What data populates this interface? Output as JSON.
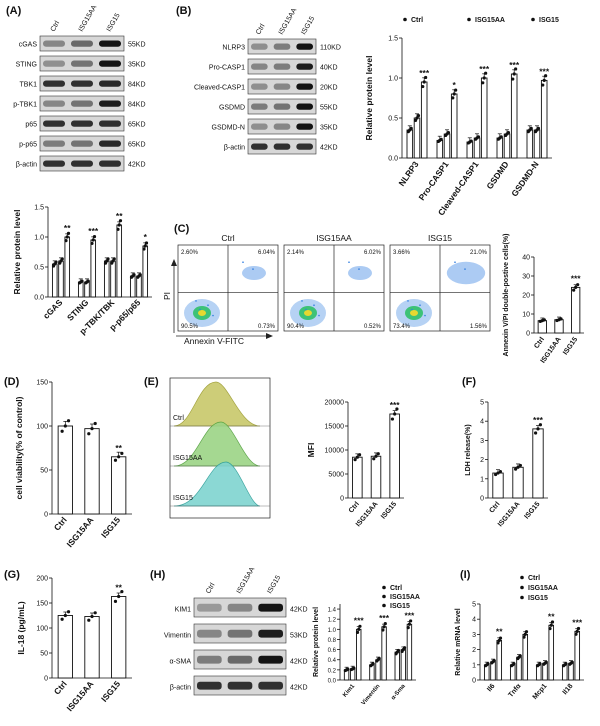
{
  "figure": {
    "panels": [
      {
        "id": "A",
        "label": "(A)",
        "blot": {
          "lanes": [
            "Ctrl",
            "ISG15AA",
            "ISG15"
          ],
          "rows": [
            {
              "name": "cGAS",
              "kd": "55KD",
              "levels": [
                0.35,
                0.5,
                0.95
              ]
            },
            {
              "name": "STING",
              "kd": "35KD",
              "levels": [
                0.3,
                0.45,
                0.95
              ]
            },
            {
              "name": "TBK1",
              "kd": "84KD",
              "levels": [
                0.8,
                0.8,
                0.85
              ]
            },
            {
              "name": "p-TBK1",
              "kd": "84KD",
              "levels": [
                0.35,
                0.45,
                0.9
              ]
            },
            {
              "name": "p65",
              "kd": "65KD",
              "levels": [
                0.8,
                0.8,
                0.8
              ]
            },
            {
              "name": "p-p65",
              "kd": "65KD",
              "levels": [
                0.4,
                0.45,
                0.85
              ]
            },
            {
              "name": "β-actin",
              "kd": "42KD",
              "levels": [
                0.8,
                0.8,
                0.8
              ]
            }
          ]
        },
        "chart_data": {
          "type": "bar",
          "ylabel": "Relative protein level",
          "ylim": [
            0,
            1.5
          ],
          "yticks": [
            "0.0",
            "0.5",
            "1.0",
            "1.5"
          ],
          "categories": [
            "cGAS",
            "STING",
            "p-TBK/TBK",
            "p-p65/p65"
          ],
          "series": [
            {
              "values": [
                0.55,
                0.25,
                0.6,
                0.35
              ]
            },
            {
              "values": [
                0.6,
                0.25,
                0.6,
                0.35
              ]
            },
            {
              "values": [
                1.0,
                0.95,
                1.2,
                0.85
              ]
            }
          ],
          "significance": [
            "**",
            "***",
            "**",
            "*"
          ]
        }
      },
      {
        "id": "B",
        "label": "(B)",
        "blot": {
          "lanes": [
            "Ctrl",
            "ISG15AA",
            "ISG15"
          ],
          "rows": [
            {
              "name": "NLRP3",
              "kd": "110KD",
              "levels": [
                0.3,
                0.4,
                0.95
              ]
            },
            {
              "name": "Pro-CASP1",
              "kd": "40KD",
              "levels": [
                0.35,
                0.4,
                0.9
              ]
            },
            {
              "name": "Cleaved-CASP1",
              "kd": "20KD",
              "levels": [
                0.3,
                0.35,
                0.95
              ]
            },
            {
              "name": "GSDMD",
              "kd": "55KD",
              "levels": [
                0.4,
                0.45,
                0.95
              ]
            },
            {
              "name": "GSDMD-N",
              "kd": "35KD",
              "levels": [
                0.3,
                0.35,
                0.95
              ]
            },
            {
              "name": "β-actin",
              "kd": "42KD",
              "levels": [
                0.8,
                0.8,
                0.8
              ]
            }
          ]
        },
        "chart_data": {
          "type": "bar",
          "ylabel": "Relative protein level",
          "ylim": [
            0,
            1.5
          ],
          "yticks": [
            "0.0",
            "0.5",
            "1.0",
            "1.5"
          ],
          "legend": [
            "Ctrl",
            "ISG15AA",
            "ISG15"
          ],
          "categories": [
            "NLRP3",
            "Pro-CASP1",
            "Cleaved-CASP1",
            "GSDMD",
            "GSDMD-N"
          ],
          "series": [
            {
              "name": "Ctrl",
              "values": [
                0.35,
                0.22,
                0.2,
                0.25,
                0.35
              ]
            },
            {
              "name": "ISG15AA",
              "values": [
                0.5,
                0.3,
                0.25,
                0.3,
                0.35
              ]
            },
            {
              "name": "ISG15",
              "values": [
                0.95,
                0.8,
                1.0,
                1.05,
                0.97
              ]
            }
          ],
          "significance": [
            "***",
            "*",
            "***",
            "***",
            "***"
          ]
        }
      },
      {
        "id": "C",
        "label": "(C)",
        "flow": {
          "xlabel": "Annexin V-FITC",
          "ylabel": "PI",
          "plots": [
            {
              "title": "Ctrl",
              "quadrants": [
                "2.60%",
                "6.04%",
                "90.5%",
                "0.73%"
              ]
            },
            {
              "title": "ISG15AA",
              "quadrants": [
                "2.14%",
                "6.02%",
                "90.4%",
                "0.52%"
              ]
            },
            {
              "title": "ISG15",
              "quadrants": [
                "3.66%",
                "21.0%",
                "73.4%",
                "1.56%"
              ]
            }
          ]
        },
        "chart_data": {
          "type": "bar",
          "ylabel": "Annexin V/PI double-postive cells(%)",
          "ylim": [
            0,
            40
          ],
          "yticks": [
            "0",
            "10",
            "20",
            "30",
            "40"
          ],
          "categories": [
            "Ctrl",
            "ISG15AA",
            "ISG15"
          ],
          "values": [
            6.5,
            7.0,
            24.0
          ],
          "significance": [
            "",
            "",
            "***"
          ]
        }
      },
      {
        "id": "D",
        "label": "(D)",
        "chart_data": {
          "type": "bar",
          "ylabel": "cell viability(% of control)",
          "ylim": [
            0,
            150
          ],
          "yticks": [
            "0",
            "50",
            "100",
            "150"
          ],
          "categories": [
            "Ctrl",
            "ISG15AA",
            "ISG15"
          ],
          "values": [
            100,
            97,
            65
          ],
          "significance": [
            "",
            "",
            "**"
          ]
        }
      },
      {
        "id": "E",
        "label": "(E)",
        "histogram": {
          "tracks": [
            "Ctrl",
            "ISG15AA",
            "ISG15"
          ]
        },
        "chart_data": {
          "type": "bar",
          "ylabel": "MFI",
          "ylim": [
            0,
            20000
          ],
          "yticks": [
            "0",
            "5000",
            "10000",
            "15000",
            "20000"
          ],
          "categories": [
            "Ctrl",
            "ISG15AA",
            "ISG15"
          ],
          "values": [
            8500,
            8700,
            17500
          ],
          "significance": [
            "",
            "",
            "***"
          ]
        }
      },
      {
        "id": "F",
        "label": "(F)",
        "chart_data": {
          "type": "bar",
          "ylabel": "LDH release(%)",
          "ylim": [
            0,
            5
          ],
          "yticks": [
            "0",
            "1",
            "2",
            "3",
            "4",
            "5"
          ],
          "categories": [
            "Ctrl",
            "ISG15AA",
            "ISG15"
          ],
          "values": [
            1.3,
            1.6,
            3.6
          ],
          "significance": [
            "",
            "",
            "***"
          ]
        }
      },
      {
        "id": "G",
        "label": "(G)",
        "chart_data": {
          "type": "bar",
          "ylabel": "IL-18 (pg/mL)",
          "ylim": [
            0,
            200
          ],
          "yticks": [
            "0",
            "50",
            "100",
            "150",
            "200"
          ],
          "categories": [
            "Ctrl",
            "ISG15AA",
            "ISG15"
          ],
          "values": [
            125,
            123,
            163
          ],
          "significance": [
            "",
            "",
            "**"
          ]
        }
      },
      {
        "id": "H",
        "label": "(H)",
        "blot": {
          "lanes": [
            "Ctrl",
            "ISG15AA",
            "ISG15"
          ],
          "rows": [
            {
              "name": "KIM1",
              "kd": "42KD",
              "levels": [
                0.25,
                0.35,
                0.95
              ]
            },
            {
              "name": "Vimentin",
              "kd": "53KD",
              "levels": [
                0.35,
                0.45,
                0.9
              ]
            },
            {
              "name": "α-SMA",
              "kd": "42KD",
              "levels": [
                0.4,
                0.5,
                0.95
              ]
            },
            {
              "name": "β-actin",
              "kd": "42KD",
              "levels": [
                0.8,
                0.8,
                0.8
              ]
            }
          ]
        },
        "chart_data": {
          "type": "bar",
          "ylabel": "Relative protein level",
          "ylim": [
            0,
            1.5
          ],
          "yticks": [
            "0.0",
            "0.2",
            "0.4",
            "0.6",
            "0.8",
            "1.0",
            "1.2",
            "1.4"
          ],
          "legend": [
            "Ctrl",
            "ISG15AA",
            "ISG15"
          ],
          "categories": [
            "Kim1",
            "Vimentin",
            "α-Sma"
          ],
          "series": [
            {
              "name": "Ctrl",
              "values": [
                0.2,
                0.3,
                0.55
              ]
            },
            {
              "name": "ISG15AA",
              "values": [
                0.22,
                0.4,
                0.6
              ]
            },
            {
              "name": "ISG15",
              "values": [
                1.0,
                1.05,
                1.1
              ]
            }
          ],
          "significance": [
            "***",
            "***",
            "***"
          ]
        }
      },
      {
        "id": "I",
        "label": "(I)",
        "chart_data": {
          "type": "bar",
          "ylabel": "Relative mRNA level",
          "ylim": [
            0,
            5
          ],
          "yticks": [
            "0",
            "1",
            "2",
            "3",
            "4",
            "5"
          ],
          "legend": [
            "Ctrl",
            "ISG15AA",
            "ISG15"
          ],
          "categories": [
            "Il6",
            "Tnfα",
            "Mcp1",
            "Il18"
          ],
          "series": [
            {
              "name": "Ctrl",
              "values": [
                1.0,
                1.0,
                1.0,
                1.0
              ]
            },
            {
              "name": "ISG15AA",
              "values": [
                1.2,
                1.5,
                1.1,
                1.1
              ]
            },
            {
              "name": "ISG15",
              "values": [
                2.6,
                3.0,
                3.6,
                3.2
              ]
            }
          ],
          "significance": [
            "**",
            "",
            "**",
            "***"
          ]
        }
      }
    ]
  }
}
